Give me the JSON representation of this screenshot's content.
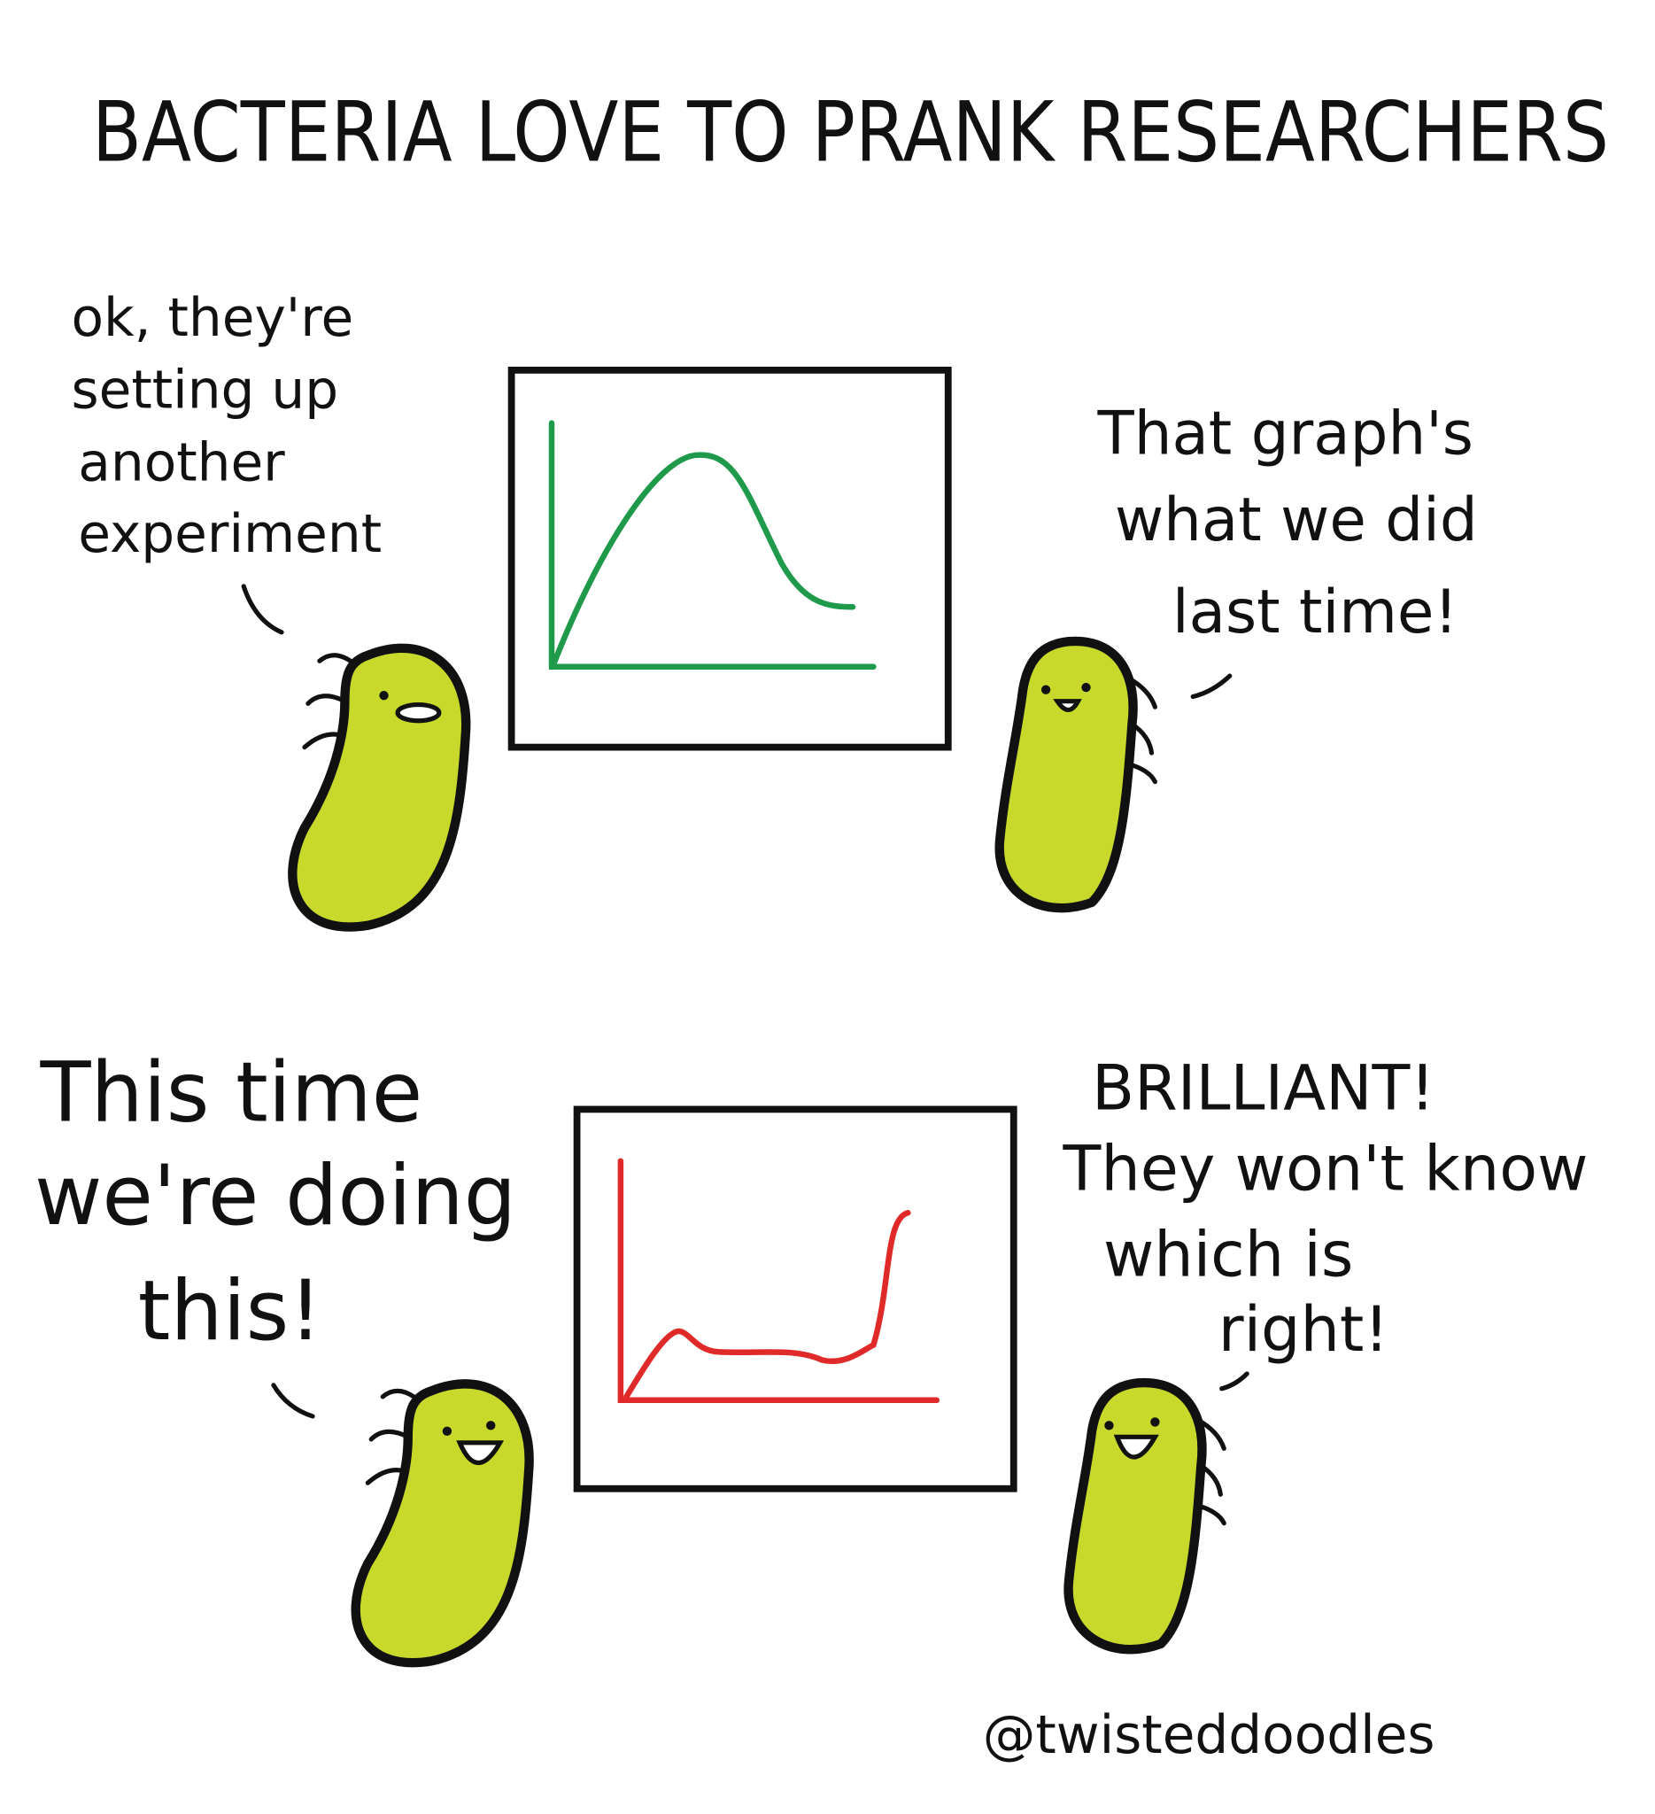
{
  "title": "BACTERIA LOVE TO PRANK RESEARCHERS",
  "panels": [
    {
      "speech_left": [
        "ok, they're",
        "setting up",
        "another",
        "experiment"
      ],
      "speech_right": [
        "That graph's",
        "what we did",
        "last time!"
      ]
    },
    {
      "speech_left": [
        "This time",
        "we're doing",
        "this!"
      ],
      "speech_right": [
        "BRILLIANT!",
        "They won't know",
        "which is",
        "right!"
      ]
    }
  ],
  "credit": "@twisteddoodles"
}
